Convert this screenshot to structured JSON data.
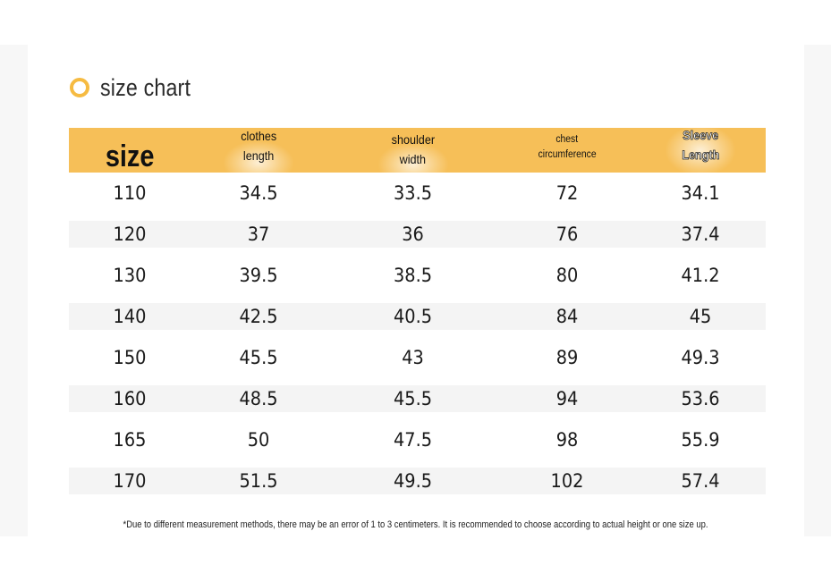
{
  "heading": {
    "title": "size chart",
    "icon": "ring-icon",
    "icon_color": "#f6bb42"
  },
  "table": {
    "header_color": "#f6bf58",
    "columns": [
      {
        "line1": "size",
        "line2": ""
      },
      {
        "line1": "clothes",
        "line2": "length"
      },
      {
        "line1": "shoulder",
        "line2": "width"
      },
      {
        "line1": "chest",
        "line2": "circumference"
      },
      {
        "line1": "Sleeve",
        "line2": "Length"
      }
    ],
    "rows": [
      [
        "110",
        "34.5",
        "33.5",
        "72",
        "34.1"
      ],
      [
        "120",
        "37",
        "36",
        "76",
        "37.4"
      ],
      [
        "130",
        "39.5",
        "38.5",
        "80",
        "41.2"
      ],
      [
        "140",
        "42.5",
        "40.5",
        "84",
        "45"
      ],
      [
        "150",
        "45.5",
        "43",
        "89",
        "49.3"
      ],
      [
        "160",
        "48.5",
        "45.5",
        "94",
        "53.6"
      ],
      [
        "165",
        "50",
        "47.5",
        "98",
        "55.9"
      ],
      [
        "170",
        "51.5",
        "49.5",
        "102",
        "57.4"
      ]
    ]
  },
  "footnote": "*Due to different measurement methods, there may be an error of 1 to 3 centimeters. It is recommended to choose according to actual height or one size up."
}
